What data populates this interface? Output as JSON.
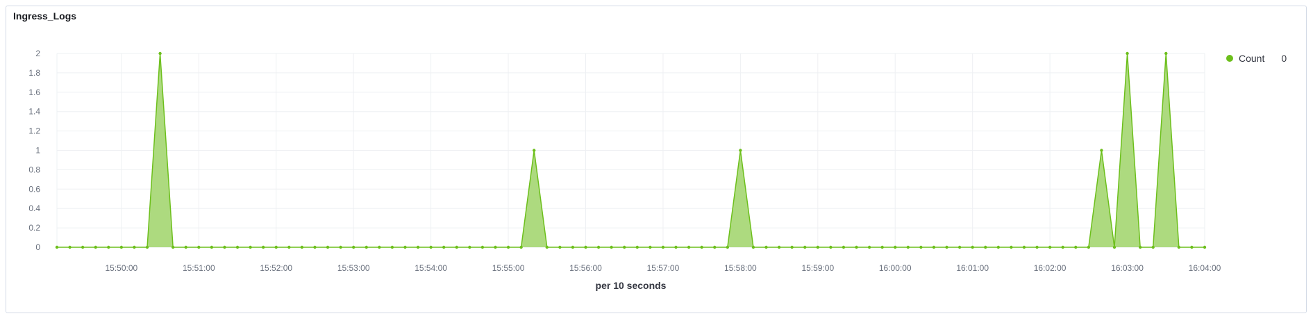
{
  "panel": {
    "title": "Ingress_Logs"
  },
  "legend": {
    "label": "Count",
    "value": "0"
  },
  "colors": {
    "series": "#6cbf1b",
    "fill": "#a9d878",
    "grid": "#eef0f3"
  },
  "chart_data": {
    "type": "area",
    "title": "Ingress_Logs",
    "xlabel": "per 10 seconds",
    "ylabel": "",
    "ylim": [
      0,
      2
    ],
    "yticks": [
      "0",
      "0.2",
      "0.4",
      "0.6",
      "0.8",
      "1",
      "1.2",
      "1.4",
      "1.6",
      "1.8",
      "2"
    ],
    "xlim": [
      "15:49:10",
      "16:04:00"
    ],
    "xticks": [
      "15:50:00",
      "15:51:00",
      "15:52:00",
      "15:53:00",
      "15:54:00",
      "15:55:00",
      "15:56:00",
      "15:57:00",
      "15:58:00",
      "15:59:00",
      "16:00:00",
      "16:01:00",
      "16:02:00",
      "16:03:00",
      "16:04:00"
    ],
    "interval_seconds": 10,
    "grid": true,
    "legend_position": "right",
    "series": [
      {
        "name": "Count",
        "points": [
          {
            "x": "15:49:10",
            "y": 0
          },
          {
            "x": "15:50:20",
            "y": 0
          },
          {
            "x": "15:50:30",
            "y": 2
          },
          {
            "x": "15:50:40",
            "y": 0
          },
          {
            "x": "15:55:10",
            "y": 0
          },
          {
            "x": "15:55:20",
            "y": 1
          },
          {
            "x": "15:55:30",
            "y": 0
          },
          {
            "x": "15:57:50",
            "y": 0
          },
          {
            "x": "15:58:00",
            "y": 1
          },
          {
            "x": "15:58:10",
            "y": 0
          },
          {
            "x": "16:02:30",
            "y": 0
          },
          {
            "x": "16:02:40",
            "y": 1
          },
          {
            "x": "16:02:50",
            "y": 0
          },
          {
            "x": "16:03:00",
            "y": 2
          },
          {
            "x": "16:03:10",
            "y": 0
          },
          {
            "x": "16:03:20",
            "y": 0
          },
          {
            "x": "16:03:30",
            "y": 2
          },
          {
            "x": "16:03:40",
            "y": 0
          },
          {
            "x": "16:04:00",
            "y": 0
          }
        ]
      }
    ]
  }
}
